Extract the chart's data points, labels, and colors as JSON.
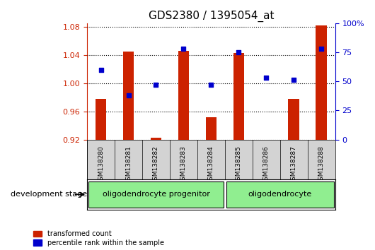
{
  "title": "GDS2380 / 1395054_at",
  "samples": [
    "GSM138280",
    "GSM138281",
    "GSM138282",
    "GSM138283",
    "GSM138284",
    "GSM138285",
    "GSM138286",
    "GSM138287",
    "GSM138288"
  ],
  "transformed_count": [
    0.978,
    1.045,
    0.923,
    1.046,
    0.952,
    1.043,
    0.92,
    0.978,
    1.082
  ],
  "percentile_rank": [
    60,
    38,
    47,
    78,
    47,
    75,
    53,
    51,
    78
  ],
  "ylim_left": [
    0.92,
    1.085
  ],
  "ylim_right": [
    0,
    100
  ],
  "yticks_left": [
    0.92,
    0.96,
    1.0,
    1.04,
    1.08
  ],
  "yticks_right": [
    0,
    25,
    50,
    75,
    100
  ],
  "ytick_labels_right": [
    "0",
    "25",
    "50",
    "75",
    "100%"
  ],
  "bar_color": "#CC2200",
  "dot_color": "#0000CC",
  "bar_width": 0.4,
  "groups": [
    {
      "label": "oligodendrocyte progenitor",
      "samples": [
        "GSM138280",
        "GSM138281",
        "GSM138282",
        "GSM138283",
        "GSM138284"
      ],
      "color": "#90EE90"
    },
    {
      "label": "oligodendrocyte",
      "samples": [
        "GSM138285",
        "GSM138286",
        "GSM138287",
        "GSM138288"
      ],
      "color": "#90EE90"
    }
  ],
  "group_label_prefix": "development stage",
  "legend_items": [
    {
      "color": "#CC2200",
      "label": "transformed count"
    },
    {
      "color": "#0000CC",
      "label": "percentile rank within the sample"
    }
  ],
  "background_color": "#FFFFFF",
  "grid_color": "#000000",
  "tick_label_color_left": "#CC2200",
  "tick_label_color_right": "#0000CC"
}
